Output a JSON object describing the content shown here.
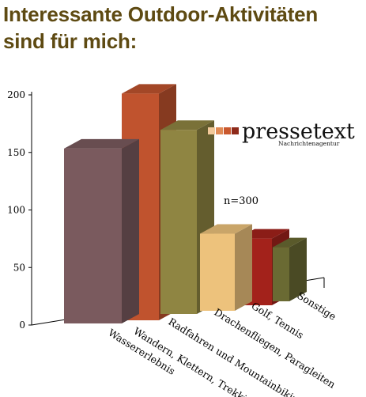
{
  "title_lines": [
    "Interessante Outdoor-Aktivitäten",
    "sind für mich:"
  ],
  "logo": {
    "text": "pressetext",
    "subtext": "Nachrichtenagentur",
    "squares": [
      "#f2c99a",
      "#e08a55",
      "#c9582e",
      "#8e2a1a"
    ]
  },
  "annotation": "n=300",
  "chart_data": {
    "type": "bar",
    "title": "Interessante Outdoor-Aktivitäten sind für mich:",
    "categories": [
      "Wassererlebnis",
      "Wandern, Klettern, Trekking",
      "Radfahren und Mountainbiking",
      "Drachenfliegen, Paragleiten",
      "Golf, Tennis",
      "Sonstige"
    ],
    "values": [
      152,
      197,
      160,
      67,
      58,
      47
    ],
    "colors": [
      "#7a5a5e",
      "#c0532e",
      "#8f8542",
      "#edc27c",
      "#a3221b",
      "#6a6a33"
    ],
    "ylim": [
      0,
      200
    ],
    "yticks": [
      0,
      50,
      100,
      150,
      200
    ],
    "grid": false,
    "style": "3d"
  }
}
